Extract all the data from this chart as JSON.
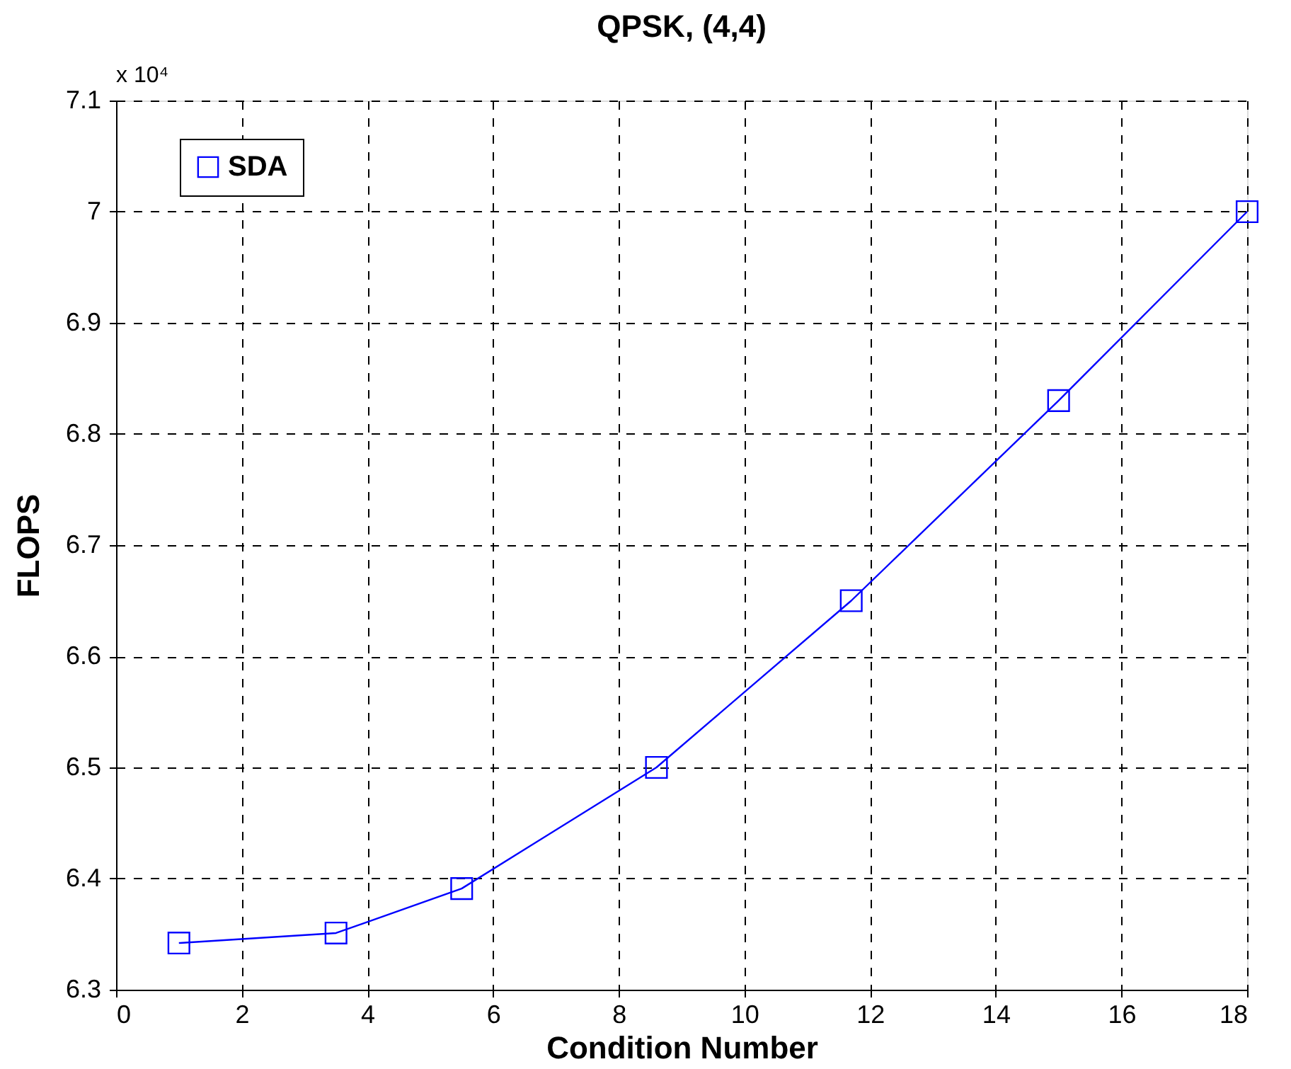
{
  "chart_data": {
    "type": "line",
    "title": "QPSK, (4,4)",
    "xlabel": "Condition Number",
    "ylabel": "FLOPS",
    "annotations": [
      "x 10⁴"
    ],
    "x": [
      1,
      3.5,
      5.5,
      8.6,
      11.7,
      15,
      18
    ],
    "series": [
      {
        "name": "SDA",
        "color": "#0000ff",
        "values": [
          6.342,
          6.351,
          6.391,
          6.5,
          6.65,
          6.83,
          7.0
        ]
      }
    ],
    "xlim": [
      0,
      18
    ],
    "xticks": [
      0,
      2,
      4,
      6,
      8,
      10,
      12,
      14,
      16,
      18
    ],
    "ylim": [
      6.3,
      7.1
    ],
    "yticks": [
      6.3,
      6.4,
      6.5,
      6.6,
      6.7,
      6.8,
      6.9,
      {
        "value": 7.0,
        "label": "7"
      },
      7.1
    ],
    "grid": true,
    "legend": "top left",
    "marker": "square",
    "line_style": "solid"
  }
}
